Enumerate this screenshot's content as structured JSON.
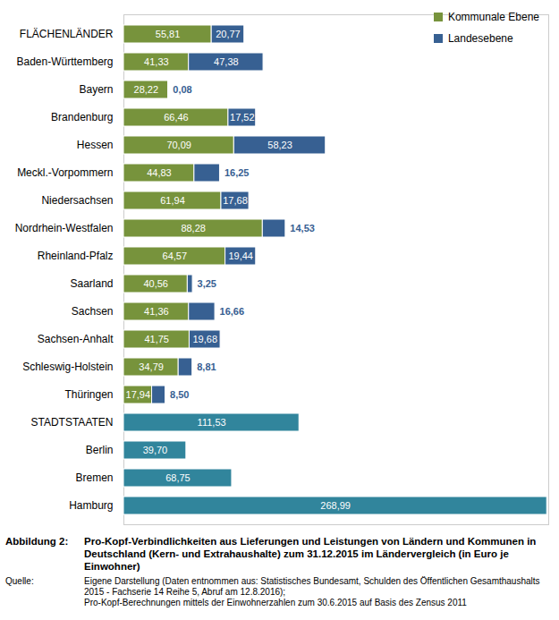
{
  "chart_data": {
    "type": "bar",
    "orientation": "horizontal",
    "stacked": true,
    "data_labels": true,
    "tick_labels": "y",
    "grid": false,
    "legend": "top-right",
    "figure_label": "Abbildung 2:",
    "title": "Pro-Kopf-Verbindlichkeiten aus Lieferungen und Leistungen von Ländern und Kommunen in Deutschland (Kern- und Extrahaushalte) zum 31.12.2015 im Ländervergleich (in Euro je Einwohner)",
    "source_label": "Quelle:",
    "source": [
      "Eigene Darstellung (Daten entnommen aus: Statistisches Bundesamt, Schulden des Öffentlichen Gesamthaushalts 2015 - Fachserie 14 Reihe 5, Abruf am 12.8.2016);",
      "Pro-Kopf-Berechnungen mittels der Einwohnerzahlen zum 30.6.2015 auf Basis des Zensus 2011"
    ],
    "categories": [
      "FLÄCHENLÄNDER",
      "Baden-Württemberg",
      "Bayern",
      "Brandenburg",
      "Hessen",
      "Meckl.-Vorpommern",
      "Niedersachsen",
      "Nordrhein-Westfalen",
      "Rheinland-Pfalz",
      "Saarland",
      "Sachsen",
      "Sachsen-Anhalt",
      "Schleswig-Holstein",
      "Thüringen",
      "STADTSTAATEN",
      "Berlin",
      "Bremen",
      "Hamburg"
    ],
    "xlim": [
      0,
      270
    ],
    "series": [
      {
        "name": "Kommunale Ebene",
        "color": "#77933c",
        "values": [
          55.81,
          41.33,
          28.22,
          66.46,
          70.09,
          44.83,
          61.94,
          88.28,
          64.57,
          40.56,
          41.36,
          41.75,
          34.79,
          17.94,
          null,
          null,
          null,
          null
        ],
        "value_labels": [
          "55,81",
          "41,33",
          "28,22",
          "66,46",
          "70,09",
          "44,83",
          "61,94",
          "88,28",
          "64,57",
          "40,56",
          "41,36",
          "41,75",
          "34,79",
          "17,94",
          null,
          null,
          null,
          null
        ]
      },
      {
        "name": "Landesebene",
        "color": "#376092",
        "values": [
          20.77,
          47.38,
          0.08,
          17.52,
          58.23,
          16.25,
          17.68,
          14.53,
          19.44,
          3.25,
          16.66,
          19.68,
          8.81,
          8.5,
          null,
          null,
          null,
          null
        ],
        "value_labels": [
          "20,77",
          "47,38",
          "0,08",
          "17,52",
          "58,23",
          "16,25",
          "17,68",
          "14,53",
          "19,44",
          "3,25",
          "16,66",
          "19,68",
          "8,81",
          "8,50",
          null,
          null,
          null,
          null
        ]
      },
      {
        "color": "#31859c",
        "values": [
          null,
          null,
          null,
          null,
          null,
          null,
          null,
          null,
          null,
          null,
          null,
          null,
          null,
          null,
          111.53,
          39.7,
          68.75,
          268.99
        ],
        "value_labels": [
          null,
          null,
          null,
          null,
          null,
          null,
          null,
          null,
          null,
          null,
          null,
          null,
          null,
          null,
          "111,53",
          "39,70",
          "68,75",
          "268,99"
        ]
      }
    ]
  }
}
